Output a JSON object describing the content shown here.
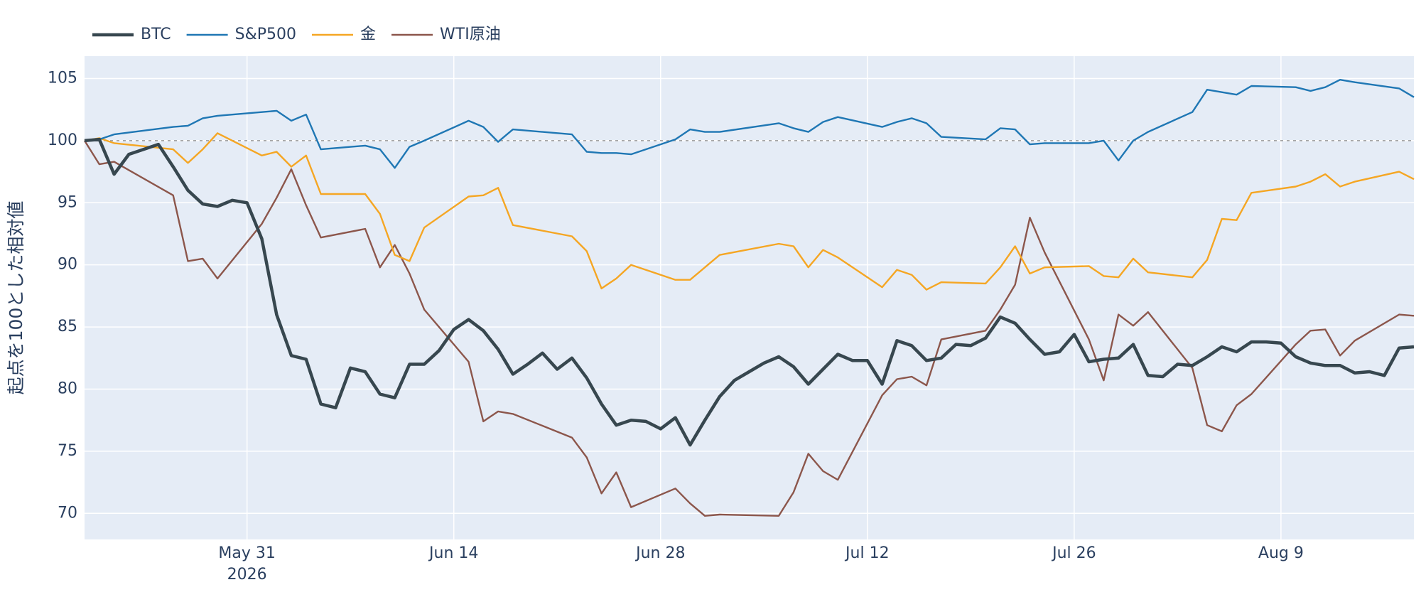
{
  "chart_data": {
    "type": "line",
    "ylabel": "起点を100とした相対値",
    "xlim": [
      "2026-05-20",
      "2026-08-18"
    ],
    "xticks": [
      {
        "value": "2026-05-31",
        "label": "May 31"
      },
      {
        "value": "2026-06-14",
        "label": "Jun 14"
      },
      {
        "value": "2026-06-28",
        "label": "Jun 28"
      },
      {
        "value": "2026-07-12",
        "label": "Jul 12"
      },
      {
        "value": "2026-07-26",
        "label": "Jul 26"
      },
      {
        "value": "2026-08-09",
        "label": "Aug 9"
      }
    ],
    "x_tick_year": "2026",
    "ylim": [
      67.9,
      106.8
    ],
    "yticks": [
      70,
      75,
      80,
      85,
      90,
      95,
      100,
      105
    ],
    "grid": true,
    "hline": 100,
    "legend": "top-left",
    "series": [
      {
        "name": "BTC",
        "color": "#37474f",
        "width": 4.5,
        "x": [
          "2026-05-20",
          "2026-05-21",
          "2026-05-22",
          "2026-05-23",
          "2026-05-24",
          "2026-05-25",
          "2026-05-26",
          "2026-05-27",
          "2026-05-28",
          "2026-05-29",
          "2026-05-30",
          "2026-05-31",
          "2026-06-01",
          "2026-06-02",
          "2026-06-03",
          "2026-06-04",
          "2026-06-05",
          "2026-06-06",
          "2026-06-07",
          "2026-06-08",
          "2026-06-09",
          "2026-06-10",
          "2026-06-11",
          "2026-06-12",
          "2026-06-13",
          "2026-06-14",
          "2026-06-15",
          "2026-06-16",
          "2026-06-17",
          "2026-06-18",
          "2026-06-19",
          "2026-06-20",
          "2026-06-21",
          "2026-06-22",
          "2026-06-23",
          "2026-06-24",
          "2026-06-25",
          "2026-06-26",
          "2026-06-27",
          "2026-06-28",
          "2026-06-29",
          "2026-06-30",
          "2026-07-01",
          "2026-07-02",
          "2026-07-03",
          "2026-07-04",
          "2026-07-05",
          "2026-07-06",
          "2026-07-07",
          "2026-07-08",
          "2026-07-09",
          "2026-07-10",
          "2026-07-11",
          "2026-07-12",
          "2026-07-13",
          "2026-07-14",
          "2026-07-15",
          "2026-07-16",
          "2026-07-17",
          "2026-07-18",
          "2026-07-19",
          "2026-07-20",
          "2026-07-21",
          "2026-07-22",
          "2026-07-23",
          "2026-07-24",
          "2026-07-25",
          "2026-07-26",
          "2026-07-27",
          "2026-07-28",
          "2026-07-29",
          "2026-07-30",
          "2026-07-31",
          "2026-08-01",
          "2026-08-02",
          "2026-08-03",
          "2026-08-04",
          "2026-08-05",
          "2026-08-06",
          "2026-08-07",
          "2026-08-08",
          "2026-08-09",
          "2026-08-10",
          "2026-08-11",
          "2026-08-12",
          "2026-08-13",
          "2026-08-14",
          "2026-08-15",
          "2026-08-16",
          "2026-08-17",
          "2026-08-18"
        ],
        "values": [
          100,
          100.1,
          97.3,
          98.9,
          99.3,
          99.7,
          97.9,
          96,
          94.9,
          94.7,
          95.2,
          95,
          92.1,
          86,
          82.7,
          82.4,
          78.8,
          78.5,
          81.7,
          81.4,
          79.6,
          79.3,
          82,
          82,
          83.1,
          84.8,
          85.6,
          84.7,
          83.2,
          81.2,
          82,
          82.9,
          81.6,
          82.5,
          80.9,
          78.8,
          77.1,
          77.5,
          77.4,
          76.8,
          77.7,
          75.5,
          77.5,
          79.4,
          80.7,
          81.4,
          82.1,
          82.6,
          81.8,
          80.4,
          81.6,
          82.8,
          82.3,
          82.3,
          80.4,
          83.9,
          83.5,
          82.3,
          82.5,
          83.6,
          83.5,
          84.1,
          85.8,
          85.3,
          84,
          82.8,
          83,
          84.4,
          82.2,
          82.4,
          82.5,
          83.6,
          81.1,
          81,
          82,
          81.9,
          82.6,
          83.4,
          83,
          83.8,
          83.8,
          83.7,
          82.6,
          82.1,
          81.9,
          81.9,
          81.3,
          81.4,
          81.1,
          83.3,
          83.4
        ]
      },
      {
        "name": "S&P500",
        "color": "#1f77b4",
        "width": 2.4,
        "x": [
          "2026-05-20",
          "2026-05-21",
          "2026-05-22",
          "2026-05-26",
          "2026-05-27",
          "2026-05-28",
          "2026-05-29",
          "2026-06-01",
          "2026-06-02",
          "2026-06-03",
          "2026-06-04",
          "2026-06-05",
          "2026-06-08",
          "2026-06-09",
          "2026-06-10",
          "2026-06-11",
          "2026-06-12",
          "2026-06-15",
          "2026-06-16",
          "2026-06-17",
          "2026-06-18",
          "2026-06-22",
          "2026-06-23",
          "2026-06-24",
          "2026-06-25",
          "2026-06-26",
          "2026-06-29",
          "2026-06-30",
          "2026-07-01",
          "2026-07-02",
          "2026-07-06",
          "2026-07-07",
          "2026-07-08",
          "2026-07-09",
          "2026-07-10",
          "2026-07-13",
          "2026-07-14",
          "2026-07-15",
          "2026-07-16",
          "2026-07-17",
          "2026-07-20",
          "2026-07-21",
          "2026-07-22",
          "2026-07-23",
          "2026-07-24",
          "2026-07-27",
          "2026-07-28",
          "2026-07-29",
          "2026-07-30",
          "2026-07-31",
          "2026-08-03",
          "2026-08-04",
          "2026-08-05",
          "2026-08-06",
          "2026-08-07",
          "2026-08-10",
          "2026-08-11",
          "2026-08-12",
          "2026-08-13",
          "2026-08-14",
          "2026-08-17",
          "2026-08-18"
        ],
        "values": [
          100,
          100.1,
          100.5,
          101.1,
          101.2,
          101.8,
          102,
          102.3,
          102.4,
          101.6,
          102.1,
          99.3,
          99.6,
          99.3,
          97.8,
          99.5,
          100,
          101.6,
          101.1,
          99.9,
          100.9,
          100.5,
          99.1,
          99,
          99,
          98.9,
          100.1,
          100.9,
          100.7,
          100.7,
          101.4,
          101,
          100.7,
          101.5,
          101.9,
          101.1,
          101.5,
          101.8,
          101.4,
          100.3,
          100.1,
          101,
          100.9,
          99.7,
          99.8,
          99.8,
          100,
          98.4,
          100,
          100.7,
          102.3,
          104.1,
          103.9,
          103.7,
          104.4,
          104.3,
          104,
          104.3,
          104.9,
          104.7,
          104.2,
          103.5
        ]
      },
      {
        "name": "金",
        "color": "#f5a623",
        "width": 2.4,
        "x": [
          "2026-05-20",
          "2026-05-21",
          "2026-05-22",
          "2026-05-26",
          "2026-05-27",
          "2026-05-28",
          "2026-05-29",
          "2026-06-01",
          "2026-06-02",
          "2026-06-03",
          "2026-06-04",
          "2026-06-05",
          "2026-06-08",
          "2026-06-09",
          "2026-06-10",
          "2026-06-11",
          "2026-06-12",
          "2026-06-15",
          "2026-06-16",
          "2026-06-17",
          "2026-06-18",
          "2026-06-22",
          "2026-06-23",
          "2026-06-24",
          "2026-06-25",
          "2026-06-26",
          "2026-06-29",
          "2026-06-30",
          "2026-07-01",
          "2026-07-02",
          "2026-07-06",
          "2026-07-07",
          "2026-07-08",
          "2026-07-09",
          "2026-07-10",
          "2026-07-13",
          "2026-07-14",
          "2026-07-15",
          "2026-07-16",
          "2026-07-17",
          "2026-07-20",
          "2026-07-21",
          "2026-07-22",
          "2026-07-23",
          "2026-07-24",
          "2026-07-27",
          "2026-07-28",
          "2026-07-29",
          "2026-07-30",
          "2026-07-31",
          "2026-08-03",
          "2026-08-04",
          "2026-08-05",
          "2026-08-06",
          "2026-08-07",
          "2026-08-10",
          "2026-08-11",
          "2026-08-12",
          "2026-08-13",
          "2026-08-14",
          "2026-08-17",
          "2026-08-18"
        ],
        "values": [
          100,
          100.2,
          99.8,
          99.3,
          98.2,
          99.3,
          100.6,
          98.8,
          99.1,
          97.9,
          98.8,
          95.7,
          95.7,
          94.1,
          90.8,
          90.3,
          93,
          95.5,
          95.6,
          96.2,
          93.2,
          92.3,
          91.1,
          88.1,
          88.9,
          90,
          88.8,
          88.8,
          89.8,
          90.8,
          91.7,
          91.5,
          89.8,
          91.2,
          90.6,
          88.2,
          89.6,
          89.2,
          88,
          88.6,
          88.5,
          89.8,
          91.5,
          89.3,
          89.8,
          89.9,
          89.1,
          89,
          90.5,
          89.4,
          89,
          90.4,
          93.7,
          93.6,
          95.8,
          96.3,
          96.7,
          97.3,
          96.3,
          96.7,
          97.5,
          96.9
        ]
      },
      {
        "name": "WTI原油",
        "color": "#8c564b",
        "width": 2.4,
        "x": [
          "2026-05-20",
          "2026-05-21",
          "2026-05-22",
          "2026-05-26",
          "2026-05-27",
          "2026-05-28",
          "2026-05-29",
          "2026-06-01",
          "2026-06-02",
          "2026-06-03",
          "2026-06-04",
          "2026-06-05",
          "2026-06-08",
          "2026-06-09",
          "2026-06-10",
          "2026-06-11",
          "2026-06-12",
          "2026-06-15",
          "2026-06-16",
          "2026-06-17",
          "2026-06-18",
          "2026-06-22",
          "2026-06-23",
          "2026-06-24",
          "2026-06-25",
          "2026-06-26",
          "2026-06-29",
          "2026-06-30",
          "2026-07-01",
          "2026-07-02",
          "2026-07-06",
          "2026-07-07",
          "2026-07-08",
          "2026-07-09",
          "2026-07-10",
          "2026-07-13",
          "2026-07-14",
          "2026-07-15",
          "2026-07-16",
          "2026-07-17",
          "2026-07-20",
          "2026-07-21",
          "2026-07-22",
          "2026-07-23",
          "2026-07-24",
          "2026-07-27",
          "2026-07-28",
          "2026-07-29",
          "2026-07-30",
          "2026-07-31",
          "2026-08-03",
          "2026-08-04",
          "2026-08-05",
          "2026-08-06",
          "2026-08-07",
          "2026-08-10",
          "2026-08-11",
          "2026-08-12",
          "2026-08-13",
          "2026-08-14",
          "2026-08-17",
          "2026-08-18"
        ],
        "values": [
          100,
          98.1,
          98.3,
          95.6,
          90.3,
          90.5,
          88.9,
          93.3,
          95.4,
          97.7,
          94.8,
          92.2,
          92.9,
          89.8,
          91.6,
          89.3,
          86.4,
          82.2,
          77.4,
          78.2,
          78,
          76.1,
          74.5,
          71.6,
          73.3,
          70.5,
          72,
          70.8,
          69.8,
          69.9,
          69.8,
          71.7,
          74.8,
          73.4,
          72.7,
          79.5,
          80.8,
          81,
          80.3,
          84,
          84.7,
          86.4,
          88.4,
          93.8,
          91,
          84,
          80.7,
          86,
          85.1,
          86.2,
          81.7,
          77.1,
          76.6,
          78.7,
          79.6,
          83.6,
          84.7,
          84.8,
          82.7,
          83.9,
          86,
          85.9
        ]
      }
    ]
  }
}
